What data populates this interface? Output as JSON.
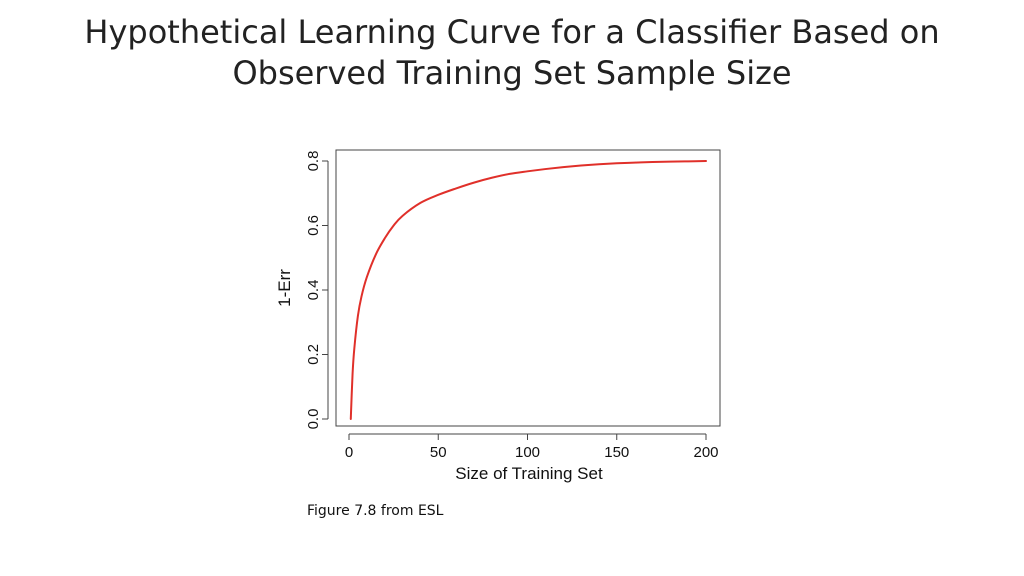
{
  "slide": {
    "title_line1": "Hypothetical Learning Curve for a Classifier Based on",
    "title_line2": "Observed Training Set Sample Size",
    "caption": "Figure 7.8 from ESL"
  },
  "chart_data": {
    "type": "line",
    "title": "",
    "xlabel": "Size of Training Set",
    "ylabel": "1-Err",
    "xlim": [
      0,
      200
    ],
    "ylim": [
      0.0,
      0.8
    ],
    "xticks": [
      "0",
      "50",
      "100",
      "150",
      "200"
    ],
    "yticks": [
      "0.0",
      "0.2",
      "0.4",
      "0.6",
      "0.8"
    ],
    "grid": false,
    "series": [
      {
        "color": "#e0302a",
        "x": [
          1,
          2,
          3,
          5,
          7,
          10,
          15,
          20,
          25,
          30,
          40,
          50,
          60,
          70,
          80,
          90,
          100,
          110,
          120,
          130,
          140,
          150,
          160,
          170,
          180,
          190,
          200
        ],
        "y": [
          0.0,
          0.14,
          0.22,
          0.32,
          0.38,
          0.44,
          0.51,
          0.56,
          0.6,
          0.63,
          0.67,
          0.695,
          0.715,
          0.733,
          0.748,
          0.76,
          0.768,
          0.775,
          0.781,
          0.786,
          0.79,
          0.793,
          0.795,
          0.797,
          0.798,
          0.799,
          0.8
        ]
      }
    ]
  }
}
